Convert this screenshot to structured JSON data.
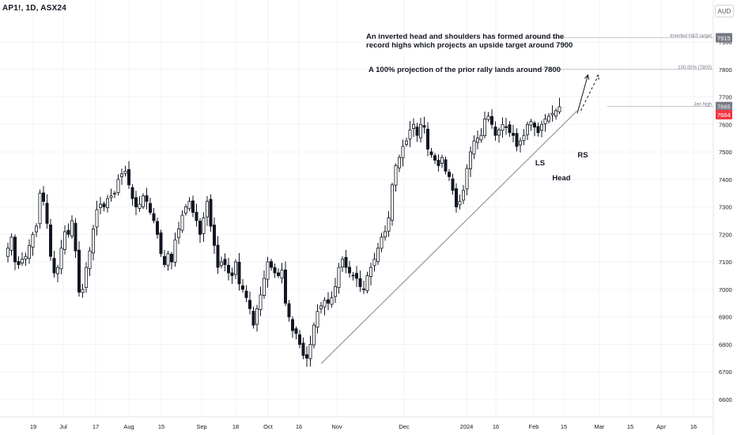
{
  "header": {
    "symbol": "AP1!, 1D, ASX24",
    "currency": "AUD"
  },
  "annotations": {
    "note1_line1": "An inverted head and shoulders has formed around the",
    "note1_line2": "record highs which projects an upside target around 7900",
    "note2": "A 100% projection of the prior rally  lands around 7800",
    "ls": "LS",
    "head": "Head",
    "rs": "RS"
  },
  "levels": [
    {
      "label": "Inverted H&S target",
      "value": 7915,
      "price_tag": "7915",
      "tag_color": "#787b86"
    },
    {
      "label": "100.00% (7800)",
      "value": 7800,
      "price_tag": "",
      "tag_color": ""
    },
    {
      "label": "Jan high",
      "value": 7665,
      "price_tag": "7665",
      "tag_color": "#787b86"
    }
  ],
  "last_price": {
    "value": 7664,
    "label": "7664",
    "color": "#f23645"
  },
  "colors": {
    "up": "#ffffff",
    "down": "#131722",
    "wick": "#131722",
    "trendline": "#9598a1",
    "grid": "#f0f3fa"
  },
  "chart_data": {
    "type": "candlestick",
    "y_axis": {
      "ticks": [
        6600,
        6700,
        6800,
        6900,
        7000,
        7100,
        7200,
        7300,
        7400,
        7500,
        7600,
        7700,
        7800,
        7900
      ],
      "range": [
        6540,
        8000
      ],
      "position": "right"
    },
    "x_axis": {
      "tick_labels": [
        "19",
        "Jul",
        "17",
        "Aug",
        "15",
        "Sep",
        "18",
        "Oct",
        "16",
        "Nov",
        "Dec",
        "2024",
        "16",
        "Feb",
        "15",
        "Mar",
        "15",
        "Apr",
        "16"
      ]
    },
    "close_series": [
      7150,
      7190,
      7100,
      7090,
      7110,
      7120,
      7160,
      7200,
      7230,
      7350,
      7320,
      7240,
      7120,
      7060,
      7080,
      7150,
      7210,
      7200,
      7250,
      7140,
      6990,
      7000,
      7080,
      7140,
      7220,
      7290,
      7310,
      7300,
      7330,
      7340,
      7350,
      7400,
      7420,
      7430,
      7380,
      7330,
      7300,
      7310,
      7340,
      7320,
      7280,
      7250,
      7200,
      7130,
      7090,
      7130,
      7100,
      7180,
      7220,
      7270,
      7300,
      7320,
      7280,
      7250,
      7200,
      7260,
      7320,
      7230,
      7160,
      7080,
      7100,
      7090,
      7060,
      7050,
      7100,
      7020,
      7000,
      6970,
      6930,
      6870,
      6930,
      6980,
      7040,
      7100,
      7080,
      7060,
      7050,
      7070,
      6950,
      6900,
      6850,
      6840,
      6800,
      6760,
      6750,
      6800,
      6870,
      6920,
      6940,
      6960,
      6950,
      6970,
      7010,
      7080,
      7110,
      7080,
      7060,
      7050,
      7040,
      7010,
      7000,
      7050,
      7080,
      7110,
      7150,
      7190,
      7210,
      7260,
      7380,
      7450,
      7480,
      7520,
      7540,
      7580,
      7600,
      7560,
      7600,
      7590,
      7510,
      7490,
      7470,
      7450,
      7480,
      7430,
      7410,
      7360,
      7300,
      7320,
      7360,
      7440,
      7500,
      7540,
      7550,
      7560,
      7620,
      7630,
      7600,
      7560,
      7580,
      7600,
      7590,
      7570,
      7560,
      7520,
      7540,
      7560,
      7600,
      7610,
      7590,
      7570,
      7600,
      7620,
      7630,
      7640,
      7650,
      7664
    ],
    "trendline": {
      "from": {
        "index": 88,
        "value": 6730
      },
      "to": {
        "index": 160,
        "value": 7650
      }
    },
    "projections": [
      {
        "name": "arrow-solid",
        "from": {
          "index": 160,
          "value": 7640
        },
        "to": {
          "index": 163,
          "value": 7780
        }
      },
      {
        "name": "arrow-dashed",
        "from": {
          "index": 161,
          "value": 7650
        },
        "to": {
          "index": 166,
          "value": 7780
        }
      }
    ]
  }
}
